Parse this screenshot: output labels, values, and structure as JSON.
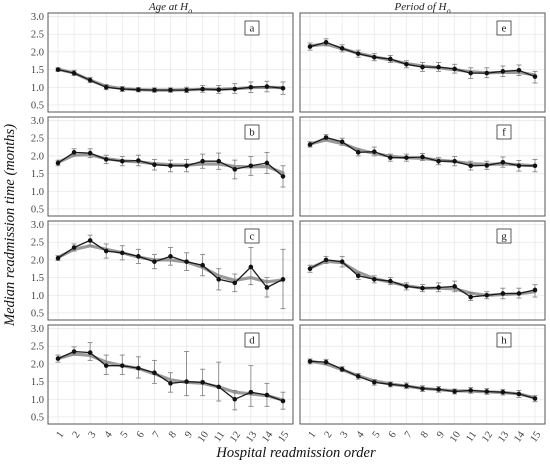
{
  "chart_data": {
    "type": "line",
    "ylabel": "Median readmission time (months)",
    "xlabel": "Hospital readmission order",
    "column_headers": [
      "Age at H",
      "Period of H"
    ],
    "header_subscript": "0",
    "x": [
      1,
      2,
      3,
      4,
      5,
      6,
      7,
      8,
      9,
      10,
      11,
      12,
      13,
      14,
      15
    ],
    "x_tick_labels": [
      "1",
      "2",
      "3",
      "4",
      "5",
      "6",
      "7",
      "8",
      "9",
      "10",
      "11",
      "12",
      "13",
      "14",
      "15"
    ],
    "ylim": [
      0.3,
      3.1
    ],
    "y_ticks": [
      0.5,
      1.0,
      1.5,
      2.0,
      2.5,
      3.0
    ],
    "y_tick_labels": [
      "0.5",
      "1.0",
      "1.5",
      "2.0",
      "2.5",
      "3.0"
    ],
    "grid": true,
    "colors": {
      "observed": "#1a1a1a",
      "smoothed": "#9a9a9a",
      "error": "#7a7a7a"
    },
    "panels": [
      {
        "label": "a",
        "row": 0,
        "col": 0,
        "values": [
          1.5,
          1.4,
          1.2,
          1.0,
          0.95,
          0.93,
          0.92,
          0.92,
          0.92,
          0.95,
          0.93,
          0.95,
          1.0,
          1.02,
          0.97
        ],
        "smooth": [
          1.51,
          1.4,
          1.2,
          1.03,
          0.96,
          0.93,
          0.92,
          0.92,
          0.93,
          0.94,
          0.94,
          0.96,
          0.99,
          1.0,
          0.99
        ],
        "lower": [
          1.45,
          1.33,
          1.13,
          0.93,
          0.88,
          0.87,
          0.86,
          0.86,
          0.85,
          0.86,
          0.83,
          0.83,
          0.85,
          0.87,
          0.8
        ],
        "upper": [
          1.55,
          1.48,
          1.28,
          1.08,
          1.02,
          0.99,
          0.98,
          0.98,
          1.0,
          1.05,
          1.05,
          1.1,
          1.15,
          1.17,
          1.15
        ]
      },
      {
        "label": "e",
        "row": 0,
        "col": 1,
        "values": [
          2.15,
          2.27,
          2.1,
          1.95,
          1.85,
          1.8,
          1.65,
          1.57,
          1.57,
          1.52,
          1.4,
          1.4,
          1.45,
          1.48,
          1.3
        ],
        "smooth": [
          2.17,
          2.22,
          2.09,
          1.96,
          1.86,
          1.77,
          1.67,
          1.6,
          1.55,
          1.5,
          1.44,
          1.41,
          1.42,
          1.42,
          1.35
        ],
        "lower": [
          2.05,
          2.17,
          2.0,
          1.85,
          1.75,
          1.7,
          1.55,
          1.45,
          1.45,
          1.4,
          1.25,
          1.27,
          1.3,
          1.33,
          1.12
        ],
        "upper": [
          2.25,
          2.37,
          2.2,
          2.05,
          1.95,
          1.9,
          1.75,
          1.7,
          1.7,
          1.65,
          1.55,
          1.55,
          1.6,
          1.63,
          1.45
        ]
      },
      {
        "label": "b",
        "row": 1,
        "col": 0,
        "values": [
          1.8,
          2.1,
          2.08,
          1.9,
          1.85,
          1.87,
          1.75,
          1.72,
          1.72,
          1.85,
          1.85,
          1.62,
          1.72,
          1.8,
          1.42
        ],
        "smooth": [
          1.82,
          2.02,
          2.03,
          1.92,
          1.86,
          1.83,
          1.78,
          1.75,
          1.74,
          1.77,
          1.77,
          1.7,
          1.69,
          1.7,
          1.52
        ],
        "lower": [
          1.72,
          2.0,
          1.95,
          1.78,
          1.72,
          1.72,
          1.6,
          1.55,
          1.55,
          1.65,
          1.62,
          1.35,
          1.45,
          1.5,
          1.12
        ],
        "upper": [
          1.88,
          2.2,
          2.2,
          2.02,
          1.98,
          2.02,
          1.9,
          1.88,
          1.9,
          2.05,
          2.08,
          1.88,
          1.98,
          2.1,
          1.72
        ]
      },
      {
        "label": "f",
        "row": 1,
        "col": 1,
        "values": [
          2.32,
          2.52,
          2.4,
          2.1,
          2.12,
          1.95,
          1.95,
          1.97,
          1.85,
          1.85,
          1.72,
          1.73,
          1.82,
          1.72,
          1.72
        ],
        "smooth": [
          2.34,
          2.45,
          2.35,
          2.18,
          2.07,
          1.99,
          1.95,
          1.93,
          1.88,
          1.84,
          1.78,
          1.76,
          1.77,
          1.75,
          1.72
        ],
        "lower": [
          2.25,
          2.45,
          2.3,
          2.0,
          2.0,
          1.85,
          1.85,
          1.87,
          1.75,
          1.72,
          1.6,
          1.62,
          1.68,
          1.57,
          1.55
        ],
        "upper": [
          2.4,
          2.6,
          2.5,
          2.2,
          2.25,
          2.05,
          2.05,
          2.07,
          1.95,
          1.98,
          1.85,
          1.85,
          1.97,
          1.87,
          1.9
        ]
      },
      {
        "label": "c",
        "row": 2,
        "col": 0,
        "values": [
          2.05,
          2.35,
          2.55,
          2.25,
          2.2,
          2.1,
          1.95,
          2.1,
          1.95,
          1.85,
          1.45,
          1.35,
          1.8,
          1.22,
          1.45
        ],
        "smooth": [
          2.07,
          2.3,
          2.4,
          2.3,
          2.2,
          2.08,
          2.0,
          2.0,
          1.94,
          1.79,
          1.55,
          1.42,
          1.5,
          1.38,
          1.43
        ],
        "lower": [
          1.98,
          2.25,
          2.4,
          2.05,
          2.0,
          1.9,
          1.75,
          1.85,
          1.7,
          1.55,
          1.15,
          1.1,
          1.3,
          0.95,
          0.62
        ],
        "upper": [
          2.12,
          2.45,
          2.7,
          2.45,
          2.4,
          2.3,
          2.15,
          2.35,
          2.2,
          2.15,
          1.75,
          1.6,
          2.35,
          1.5,
          2.3
        ]
      },
      {
        "label": "g",
        "row": 2,
        "col": 1,
        "values": [
          1.75,
          2.0,
          1.95,
          1.55,
          1.45,
          1.4,
          1.25,
          1.2,
          1.22,
          1.25,
          0.95,
          1.0,
          1.05,
          1.05,
          1.15
        ],
        "smooth": [
          1.77,
          1.96,
          1.92,
          1.65,
          1.47,
          1.37,
          1.27,
          1.2,
          1.2,
          1.18,
          1.06,
          1.0,
          1.02,
          1.04,
          1.1
        ],
        "lower": [
          1.65,
          1.9,
          1.8,
          1.45,
          1.35,
          1.3,
          1.15,
          1.1,
          1.1,
          1.1,
          0.85,
          0.9,
          0.9,
          0.92,
          0.95
        ],
        "upper": [
          1.85,
          2.1,
          2.1,
          1.65,
          1.55,
          1.5,
          1.35,
          1.3,
          1.35,
          1.4,
          1.08,
          1.1,
          1.2,
          1.2,
          1.3
        ]
      },
      {
        "label": "d",
        "row": 3,
        "col": 0,
        "values": [
          2.15,
          2.35,
          2.32,
          1.95,
          1.95,
          1.88,
          1.75,
          1.45,
          1.5,
          1.48,
          1.35,
          1.0,
          1.2,
          1.12,
          0.95
        ],
        "smooth": [
          2.15,
          2.28,
          2.24,
          2.05,
          1.95,
          1.87,
          1.72,
          1.55,
          1.48,
          1.45,
          1.35,
          1.2,
          1.15,
          1.1,
          0.98
        ],
        "lower": [
          2.05,
          2.25,
          2.1,
          1.7,
          1.7,
          1.6,
          1.45,
          1.2,
          1.1,
          1.1,
          0.95,
          0.7,
          0.8,
          0.8,
          0.72
        ],
        "upper": [
          2.25,
          2.48,
          2.6,
          2.25,
          2.25,
          2.2,
          2.1,
          1.75,
          2.35,
          1.85,
          2.05,
          1.25,
          1.95,
          1.45,
          1.2
        ]
      },
      {
        "label": "h",
        "row": 3,
        "col": 1,
        "values": [
          2.07,
          2.05,
          1.85,
          1.65,
          1.48,
          1.42,
          1.38,
          1.3,
          1.28,
          1.22,
          1.25,
          1.22,
          1.2,
          1.15,
          1.02
        ],
        "smooth": [
          2.08,
          2.0,
          1.84,
          1.66,
          1.52,
          1.43,
          1.37,
          1.31,
          1.27,
          1.24,
          1.23,
          1.21,
          1.19,
          1.15,
          1.04
        ],
        "lower": [
          2.0,
          1.97,
          1.78,
          1.57,
          1.4,
          1.35,
          1.3,
          1.22,
          1.2,
          1.15,
          1.17,
          1.14,
          1.12,
          1.05,
          0.93
        ],
        "upper": [
          2.14,
          2.13,
          1.92,
          1.73,
          1.56,
          1.49,
          1.46,
          1.38,
          1.36,
          1.29,
          1.33,
          1.3,
          1.28,
          1.25,
          1.1
        ]
      }
    ]
  }
}
